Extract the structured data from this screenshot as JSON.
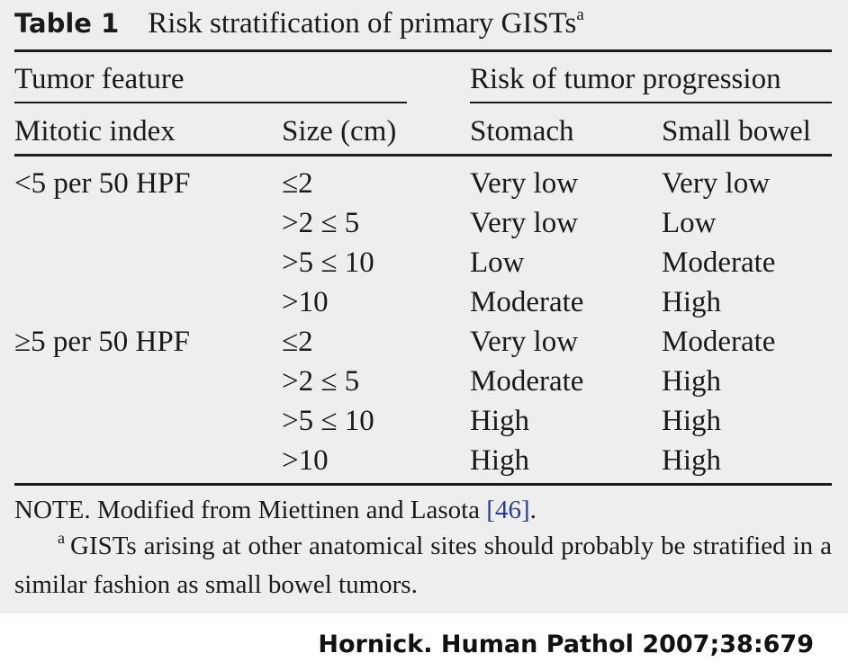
{
  "table": {
    "label": "Table 1",
    "title": "Risk stratification of primary GISTs",
    "title_footnote_mark": "a",
    "group_headers": {
      "tumor_feature": "Tumor feature",
      "risk": "Risk of tumor progression"
    },
    "columns": [
      "Mitotic index",
      "Size (cm)",
      "Stomach",
      "Small bowel"
    ],
    "rows": [
      {
        "mitotic": "<5 per 50 HPF",
        "size": "≤2",
        "stomach": "Very low",
        "bowel": "Very low"
      },
      {
        "mitotic": "",
        "size": ">2 ≤ 5",
        "stomach": "Very low",
        "bowel": "Low"
      },
      {
        "mitotic": "",
        "size": ">5 ≤ 10",
        "stomach": "Low",
        "bowel": "Moderate"
      },
      {
        "mitotic": "",
        "size": ">10",
        "stomach": "Moderate",
        "bowel": "High"
      },
      {
        "mitotic": "≥5 per 50 HPF",
        "size": "≤2",
        "stomach": "Very low",
        "bowel": "Moderate"
      },
      {
        "mitotic": "",
        "size": ">2 ≤ 5",
        "stomach": "Moderate",
        "bowel": "High"
      },
      {
        "mitotic": "",
        "size": ">5 ≤ 10",
        "stomach": "High",
        "bowel": "High"
      },
      {
        "mitotic": "",
        "size": ">10",
        "stomach": "High",
        "bowel": "High"
      }
    ],
    "note": {
      "prefix": "NOTE. Modified from Miettinen and Lasota ",
      "citation": "[46]",
      "suffix": "."
    },
    "footnote": {
      "mark": "a",
      "text": "GISTs arising at other anatomical sites should probably be stratified in a similar fashion as small bowel tumors."
    }
  },
  "credit": "Hornick. Human Pathol 2007;38:679",
  "colors": {
    "panel_background": "#eeeeee",
    "text": "#1a1a1a",
    "citation_link": "#2b3d9a"
  }
}
